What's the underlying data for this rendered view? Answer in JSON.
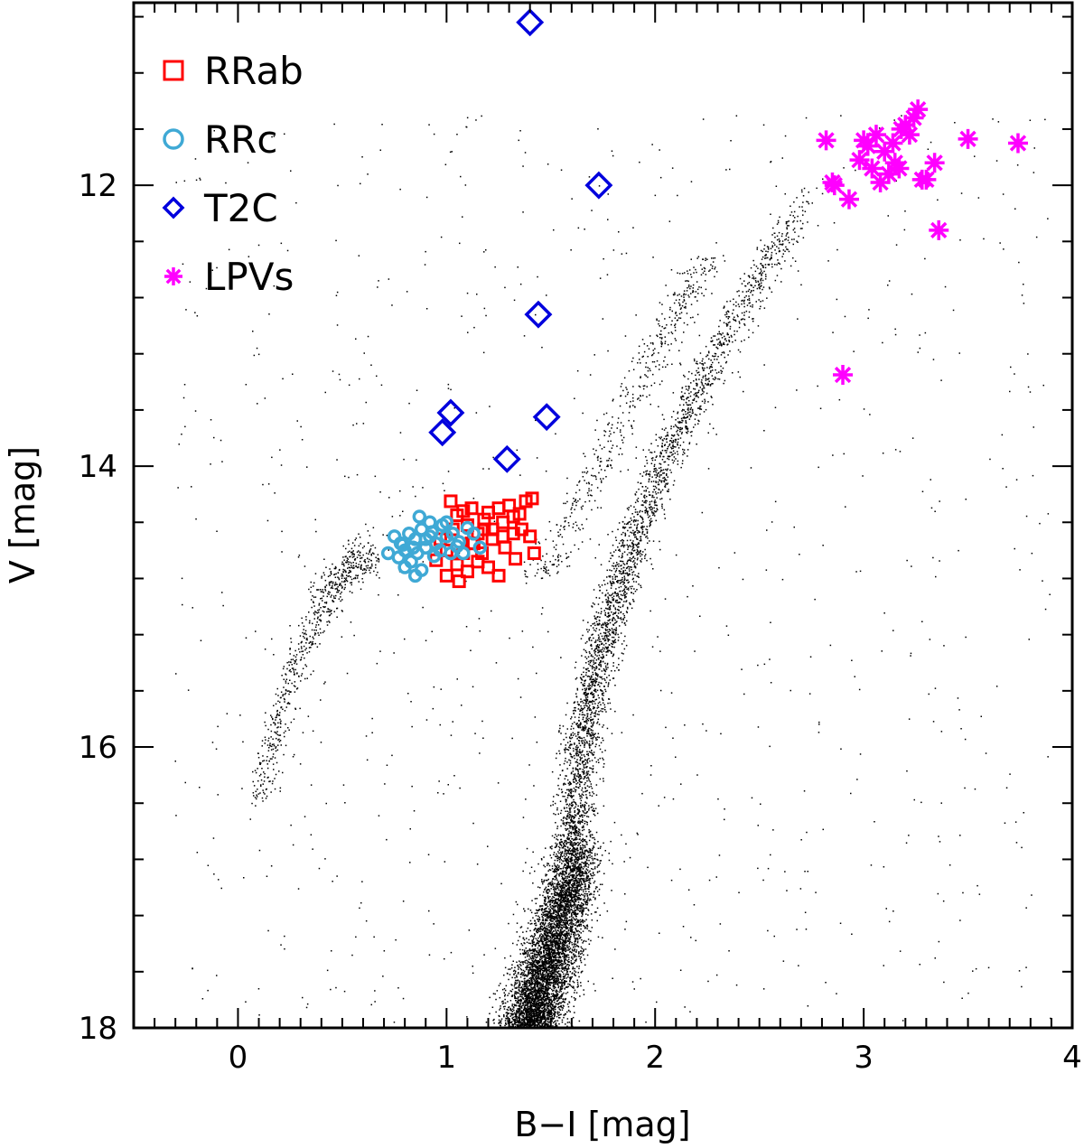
{
  "chart_data": {
    "type": "scatter",
    "xlabel": "B−I [mag]",
    "ylabel": "V [mag]",
    "xlim": [
      -0.5,
      4.0
    ],
    "ylim": [
      18.0,
      10.7
    ],
    "y_inverted": true,
    "x_ticks": [
      "0",
      "1",
      "2",
      "3",
      "4"
    ],
    "y_ticks": [
      "12",
      "14",
      "16",
      "18"
    ],
    "legend_position": "top-left",
    "series": [
      {
        "name": "RRab",
        "color": "#ff0000",
        "marker": "square",
        "points": [
          [
            1.02,
            14.25
          ],
          [
            1.05,
            14.35
          ],
          [
            1.08,
            14.32
          ],
          [
            1.1,
            14.42
          ],
          [
            1.12,
            14.3
          ],
          [
            1.15,
            14.48
          ],
          [
            1.18,
            14.38
          ],
          [
            1.2,
            14.33
          ],
          [
            1.22,
            14.45
          ],
          [
            1.25,
            14.3
          ],
          [
            1.27,
            14.4
          ],
          [
            1.3,
            14.28
          ],
          [
            1.32,
            14.36
          ],
          [
            1.35,
            14.34
          ],
          [
            1.38,
            14.25
          ],
          [
            1.41,
            14.23
          ],
          [
            1.13,
            14.55
          ],
          [
            1.17,
            14.62
          ],
          [
            1.22,
            14.52
          ],
          [
            1.27,
            14.5
          ],
          [
            1.32,
            14.48
          ],
          [
            1.36,
            14.45
          ],
          [
            1.4,
            14.5
          ],
          [
            1.42,
            14.62
          ],
          [
            1.0,
            14.6
          ],
          [
            1.05,
            14.7
          ],
          [
            1.1,
            14.75
          ],
          [
            1.15,
            14.68
          ],
          [
            1.2,
            14.72
          ],
          [
            1.25,
            14.78
          ],
          [
            1.08,
            14.62
          ],
          [
            1.12,
            14.55
          ],
          [
            1.03,
            14.45
          ],
          [
            1.33,
            14.66
          ],
          [
            0.97,
            14.52
          ],
          [
            1.06,
            14.82
          ],
          [
            1.0,
            14.78
          ],
          [
            0.95,
            14.67
          ],
          [
            1.18,
            14.45
          ],
          [
            1.28,
            14.58
          ]
        ]
      },
      {
        "name": "RRc",
        "color": "#3fa9d5",
        "marker": "circle",
        "points": [
          [
            0.75,
            14.5
          ],
          [
            0.78,
            14.55
          ],
          [
            0.8,
            14.6
          ],
          [
            0.82,
            14.48
          ],
          [
            0.85,
            14.52
          ],
          [
            0.88,
            14.45
          ],
          [
            0.9,
            14.58
          ],
          [
            0.92,
            14.5
          ],
          [
            0.95,
            14.55
          ],
          [
            0.98,
            14.42
          ],
          [
            1.0,
            14.5
          ],
          [
            1.03,
            14.48
          ],
          [
            1.06,
            14.54
          ],
          [
            1.1,
            14.44
          ],
          [
            1.13,
            14.48
          ],
          [
            0.87,
            14.36
          ],
          [
            0.92,
            14.4
          ],
          [
            0.97,
            14.6
          ],
          [
            1.02,
            14.62
          ],
          [
            0.77,
            14.65
          ],
          [
            0.8,
            14.72
          ],
          [
            0.83,
            14.68
          ],
          [
            0.85,
            14.78
          ],
          [
            0.88,
            14.74
          ],
          [
            0.72,
            14.62
          ],
          [
            0.94,
            14.64
          ],
          [
            1.08,
            14.62
          ],
          [
            1.16,
            14.58
          ],
          [
            0.9,
            14.52
          ],
          [
            0.84,
            14.58
          ],
          [
            1.0,
            14.4
          ],
          [
            0.86,
            14.62
          ],
          [
            0.79,
            14.56
          ],
          [
            0.93,
            14.47
          ],
          [
            1.05,
            14.57
          ]
        ]
      },
      {
        "name": "T2C",
        "color": "#0000dd",
        "marker": "diamond",
        "points": [
          [
            1.4,
            10.84
          ],
          [
            1.73,
            12.0
          ],
          [
            1.44,
            12.92
          ],
          [
            1.02,
            13.62
          ],
          [
            0.98,
            13.76
          ],
          [
            1.48,
            13.65
          ],
          [
            1.29,
            13.95
          ]
        ]
      },
      {
        "name": "LPVs",
        "color": "#ff00ff",
        "marker": "asterisk",
        "points": [
          [
            2.82,
            11.68
          ],
          [
            2.85,
            11.98
          ],
          [
            2.86,
            12.0
          ],
          [
            2.93,
            12.1
          ],
          [
            2.98,
            11.82
          ],
          [
            3.0,
            11.68
          ],
          [
            3.02,
            11.72
          ],
          [
            3.04,
            11.88
          ],
          [
            3.06,
            11.64
          ],
          [
            3.08,
            11.98
          ],
          [
            3.1,
            11.76
          ],
          [
            3.12,
            11.92
          ],
          [
            3.14,
            11.7
          ],
          [
            3.15,
            11.84
          ],
          [
            3.17,
            11.88
          ],
          [
            3.18,
            11.6
          ],
          [
            3.2,
            11.57
          ],
          [
            3.22,
            11.64
          ],
          [
            3.24,
            11.52
          ],
          [
            3.26,
            11.46
          ],
          [
            3.28,
            11.96
          ],
          [
            3.3,
            11.96
          ],
          [
            3.34,
            11.84
          ],
          [
            3.36,
            12.32
          ],
          [
            3.5,
            11.67
          ],
          [
            3.74,
            11.7
          ],
          [
            2.9,
            13.35
          ]
        ]
      },
      {
        "name": "",
        "color": "#000000",
        "marker": "dot",
        "description_free": true
      }
    ]
  }
}
